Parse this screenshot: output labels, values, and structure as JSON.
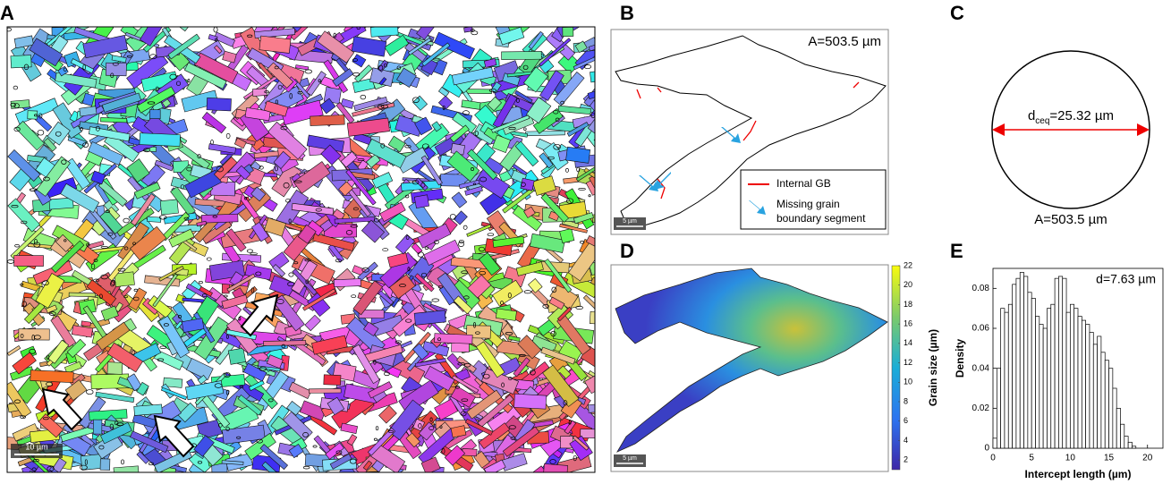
{
  "panels": {
    "A": {
      "label": "A",
      "scale_bar": "10 µm"
    },
    "B": {
      "label": "B",
      "annotation": "A=503.5 µm",
      "legend_internal": "Internal GB",
      "legend_missing": [
        "Missing grain",
        "boundary segment"
      ],
      "scale_bar": "5 µm"
    },
    "C": {
      "label": "C",
      "diameter_symbol": "d",
      "diameter_subscript": "ceq",
      "diameter_value": "=25.32 µm",
      "area": "A=503.5 µm"
    },
    "D": {
      "label": "D",
      "scale_bar": "5 µm",
      "colorbar": {
        "label": "Grain size (µm)",
        "lim": [
          1,
          22
        ],
        "ticks": [
          2,
          4,
          6,
          8,
          10,
          12,
          14,
          16,
          18,
          20,
          22
        ]
      }
    },
    "E": {
      "label": "E"
    }
  },
  "chart_data": {
    "type": "histogram",
    "annotation": "d=7.63 µm",
    "x_label": "Intercept length (µm)",
    "y_label": "Density",
    "bins": [
      0,
      0.5,
      1,
      1.5,
      2,
      2.5,
      3,
      3.5,
      4,
      4.5,
      5,
      5.5,
      6,
      6.5,
      7,
      7.5,
      8,
      8.5,
      9,
      9.5,
      10,
      10.5,
      11,
      11.5,
      12,
      12.5,
      13,
      13.5,
      14,
      14.5,
      15,
      15.5,
      16,
      16.5,
      17,
      17.5,
      18,
      18.5
    ],
    "values": [
      0.005,
      0.04,
      0.07,
      0.068,
      0.072,
      0.082,
      0.085,
      0.088,
      0.086,
      0.078,
      0.075,
      0.066,
      0.062,
      0.06,
      0.07,
      0.072,
      0.085,
      0.086,
      0.085,
      0.068,
      0.072,
      0.07,
      0.066,
      0.064,
      0.062,
      0.058,
      0.052,
      0.056,
      0.048,
      0.044,
      0.04,
      0.03,
      0.02,
      0.012,
      0.006,
      0.003,
      0.001
    ],
    "color": "#ffffff",
    "xlim": [
      0,
      22
    ],
    "xticks": [
      0,
      5,
      10,
      15,
      20
    ],
    "ylim": [
      0,
      0.09
    ],
    "yticks": [
      0,
      0.02,
      0.04,
      0.06,
      0.08
    ]
  }
}
